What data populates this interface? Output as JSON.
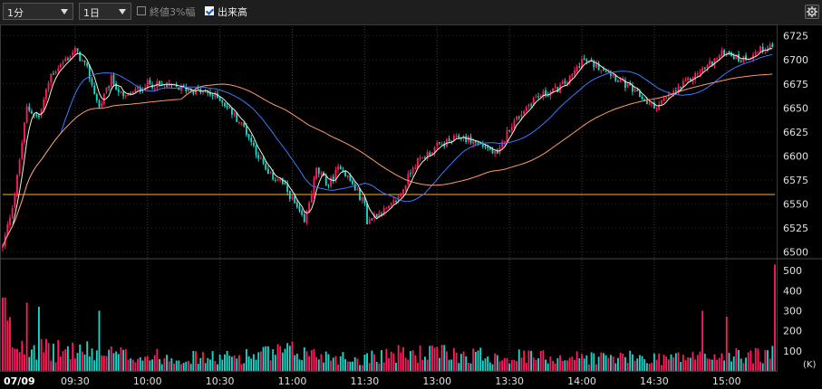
{
  "toolbar": {
    "interval_select": "1分",
    "period_select": "1日",
    "limit_check": {
      "label": "終値3%幅",
      "checked": false
    },
    "volume_check": {
      "label": "出来高",
      "checked": true
    },
    "settings_icon": "gear-icon"
  },
  "colors": {
    "up": "#ff1a5e",
    "down": "#19d6c8",
    "ma_short": "#f2f2d0",
    "ma_mid": "#3a7bff",
    "ma_long": "#ff9a66",
    "ref_line": "#ffae42"
  },
  "chart_data": {
    "type": "candlestick",
    "date_label": "07/09",
    "x_ticks": [
      "09:30",
      "10:00",
      "10:30",
      "11:00",
      "11:30",
      "13:00",
      "13:30",
      "14:00",
      "14:30",
      "15:00"
    ],
    "price_ticks": [
      6500,
      6525,
      6550,
      6575,
      6600,
      6625,
      6650,
      6675,
      6700,
      6725
    ],
    "price_range": [
      6495,
      6735
    ],
    "reference_price": 6560,
    "volume_ticks": [
      100,
      200,
      300,
      400,
      500
    ],
    "volume_unit": "(K)",
    "volume_range": [
      0,
      550
    ],
    "price_anchors": [
      [
        "09:00",
        6505
      ],
      [
        "09:05",
        6560
      ],
      [
        "09:10",
        6650
      ],
      [
        "09:15",
        6640
      ],
      [
        "09:20",
        6685
      ],
      [
        "09:30",
        6710
      ],
      [
        "09:35",
        6690
      ],
      [
        "09:40",
        6650
      ],
      [
        "09:45",
        6680
      ],
      [
        "09:50",
        6660
      ],
      [
        "10:00",
        6675
      ],
      [
        "10:10",
        6672
      ],
      [
        "10:20",
        6668
      ],
      [
        "10:25",
        6665
      ],
      [
        "10:30",
        6660
      ],
      [
        "10:40",
        6630
      ],
      [
        "10:50",
        6580
      ],
      [
        "10:55",
        6575
      ],
      [
        "11:00",
        6555
      ],
      [
        "11:05",
        6530
      ],
      [
        "11:10",
        6585
      ],
      [
        "11:15",
        6570
      ],
      [
        "11:20",
        6590
      ],
      [
        "11:30",
        6550
      ],
      [
        "11:35",
        6525
      ],
      [
        "12:30",
        6530
      ],
      [
        "12:35",
        6540
      ],
      [
        "12:40",
        6545
      ],
      [
        "12:45",
        6560
      ],
      [
        "12:50",
        6590
      ],
      [
        "13:00",
        6610
      ],
      [
        "13:10",
        6620
      ],
      [
        "13:20",
        6610
      ],
      [
        "13:25",
        6600
      ],
      [
        "13:30",
        6630
      ],
      [
        "13:40",
        6660
      ],
      [
        "13:50",
        6670
      ],
      [
        "13:55",
        6680
      ],
      [
        "14:00",
        6700
      ],
      [
        "14:10",
        6690
      ],
      [
        "14:20",
        6670
      ],
      [
        "14:30",
        6650
      ],
      [
        "14:40",
        6670
      ],
      [
        "14:50",
        6690
      ],
      [
        "14:55",
        6700
      ],
      [
        "15:00",
        6710
      ],
      [
        "15:05",
        6700
      ],
      [
        "15:10",
        6705
      ],
      [
        "15:15",
        6712
      ],
      [
        "15:19",
        6715
      ]
    ],
    "volume_anchors": [
      [
        "09:00",
        380
      ],
      [
        "09:05",
        150
      ],
      [
        "09:10",
        200
      ],
      [
        "09:15",
        140
      ],
      [
        "09:20",
        120
      ],
      [
        "09:30",
        130
      ],
      [
        "09:40",
        110
      ],
      [
        "10:00",
        90
      ],
      [
        "10:30",
        80
      ],
      [
        "11:00",
        120
      ],
      [
        "11:30",
        70
      ],
      [
        "12:30",
        100
      ],
      [
        "13:00",
        110
      ],
      [
        "13:30",
        90
      ],
      [
        "14:00",
        85
      ],
      [
        "14:30",
        80
      ],
      [
        "15:00",
        95
      ],
      [
        "15:19",
        100
      ]
    ],
    "volume_spikes": [
      [
        "09:10",
        340
      ],
      [
        "09:15",
        320
      ],
      [
        "09:40",
        300
      ],
      [
        "13:00",
        120
      ],
      [
        "14:50",
        300
      ],
      [
        "15:00",
        270
      ],
      [
        "15:20",
        530
      ]
    ]
  }
}
